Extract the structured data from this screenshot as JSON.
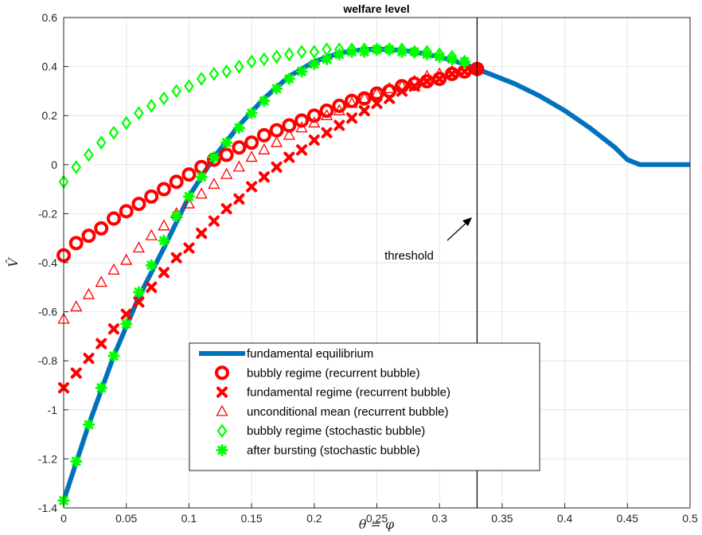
{
  "chart_data": {
    "type": "line",
    "title": "welfare level",
    "xlabel": "θ = φ",
    "ylabel": "V̂",
    "xlim": [
      0,
      0.5
    ],
    "ylim": [
      -1.4,
      0.6
    ],
    "x_ticks": [
      "0",
      "0.05",
      "0.1",
      "0.15",
      "0.2",
      "0.25",
      "0.3",
      "0.35",
      "0.4",
      "0.45",
      "0.5"
    ],
    "y_ticks": [
      "-1.4",
      "-1.2",
      "-1",
      "-0.8",
      "-0.6",
      "-0.4",
      "-0.2",
      "0",
      "0.2",
      "0.4",
      "0.6"
    ],
    "grid": true,
    "legend_position": "bottom-center",
    "threshold": {
      "x": 0.33,
      "label": "threshold"
    },
    "series": [
      {
        "name": "fundamental equilibrium",
        "style": "line",
        "color": "#0072BD",
        "x": [
          0,
          0.02,
          0.04,
          0.06,
          0.08,
          0.1,
          0.12,
          0.14,
          0.16,
          0.18,
          0.2,
          0.22,
          0.24,
          0.26,
          0.28,
          0.3,
          0.32,
          0.33,
          0.34,
          0.36,
          0.38,
          0.4,
          0.42,
          0.44,
          0.45,
          0.46,
          0.47,
          0.5
        ],
        "y": [
          -1.37,
          -1.06,
          -0.78,
          -0.54,
          -0.34,
          -0.13,
          0.03,
          0.16,
          0.27,
          0.36,
          0.42,
          0.455,
          0.47,
          0.47,
          0.46,
          0.44,
          0.41,
          0.39,
          0.37,
          0.33,
          0.28,
          0.22,
          0.15,
          0.07,
          0.02,
          0.0,
          0.0,
          0.0
        ]
      },
      {
        "name": "bubbly regime (recurrent bubble)",
        "marker": "circle",
        "color": "#FF0000",
        "x": [
          0,
          0.01,
          0.02,
          0.03,
          0.04,
          0.05,
          0.06,
          0.07,
          0.08,
          0.09,
          0.1,
          0.11,
          0.12,
          0.13,
          0.14,
          0.15,
          0.16,
          0.17,
          0.18,
          0.19,
          0.2,
          0.21,
          0.22,
          0.23,
          0.24,
          0.25,
          0.26,
          0.27,
          0.28,
          0.29,
          0.3,
          0.31,
          0.32,
          0.33
        ],
        "y": [
          -0.37,
          -0.32,
          -0.29,
          -0.26,
          -0.22,
          -0.19,
          -0.16,
          -0.13,
          -0.1,
          -0.07,
          -0.04,
          -0.01,
          0.02,
          0.04,
          0.07,
          0.09,
          0.12,
          0.14,
          0.16,
          0.18,
          0.2,
          0.22,
          0.24,
          0.26,
          0.27,
          0.29,
          0.3,
          0.32,
          0.33,
          0.34,
          0.35,
          0.37,
          0.38,
          0.39
        ]
      },
      {
        "name": "fundamental regime (recurrent bubble)",
        "marker": "x",
        "color": "#FF0000",
        "x": [
          0,
          0.01,
          0.02,
          0.03,
          0.04,
          0.05,
          0.06,
          0.07,
          0.08,
          0.09,
          0.1,
          0.11,
          0.12,
          0.13,
          0.14,
          0.15,
          0.16,
          0.17,
          0.18,
          0.19,
          0.2,
          0.21,
          0.22,
          0.23,
          0.24,
          0.25,
          0.26,
          0.27,
          0.28,
          0.29,
          0.3,
          0.31,
          0.32,
          0.33
        ],
        "y": [
          -0.91,
          -0.85,
          -0.79,
          -0.73,
          -0.67,
          -0.61,
          -0.56,
          -0.5,
          -0.44,
          -0.38,
          -0.34,
          -0.28,
          -0.23,
          -0.18,
          -0.14,
          -0.09,
          -0.05,
          -0.01,
          0.03,
          0.06,
          0.1,
          0.13,
          0.16,
          0.19,
          0.22,
          0.25,
          0.27,
          0.3,
          0.32,
          0.34,
          0.35,
          0.37,
          0.38,
          0.39
        ]
      },
      {
        "name": "unconditional mean (recurrent bubble)",
        "marker": "triangle",
        "color": "#FF0000",
        "x": [
          0,
          0.01,
          0.02,
          0.03,
          0.04,
          0.05,
          0.06,
          0.07,
          0.08,
          0.09,
          0.1,
          0.11,
          0.12,
          0.13,
          0.14,
          0.15,
          0.16,
          0.17,
          0.18,
          0.19,
          0.2,
          0.21,
          0.22,
          0.23,
          0.24,
          0.25,
          0.26,
          0.27,
          0.28,
          0.29,
          0.3,
          0.31,
          0.32,
          0.33
        ],
        "y": [
          -0.63,
          -0.58,
          -0.53,
          -0.48,
          -0.43,
          -0.39,
          -0.34,
          -0.29,
          -0.25,
          -0.2,
          -0.16,
          -0.12,
          -0.08,
          -0.04,
          -0.01,
          0.03,
          0.06,
          0.09,
          0.12,
          0.15,
          0.17,
          0.2,
          0.22,
          0.25,
          0.27,
          0.29,
          0.31,
          0.32,
          0.34,
          0.36,
          0.37,
          0.38,
          0.39,
          0.39
        ]
      },
      {
        "name": "bubbly regime (stochastic bubble)",
        "marker": "diamond",
        "color": "#00FF00",
        "x": [
          0,
          0.01,
          0.02,
          0.03,
          0.04,
          0.05,
          0.06,
          0.07,
          0.08,
          0.09,
          0.1,
          0.11,
          0.12,
          0.13,
          0.14,
          0.15,
          0.16,
          0.17,
          0.18,
          0.19,
          0.2,
          0.21,
          0.22,
          0.23,
          0.24,
          0.25,
          0.26,
          0.27,
          0.28,
          0.29,
          0.3,
          0.31,
          0.32
        ],
        "y": [
          -0.07,
          -0.01,
          0.04,
          0.09,
          0.13,
          0.17,
          0.21,
          0.24,
          0.27,
          0.3,
          0.32,
          0.35,
          0.37,
          0.38,
          0.4,
          0.42,
          0.43,
          0.44,
          0.45,
          0.46,
          0.46,
          0.47,
          0.47,
          0.47,
          0.47,
          0.47,
          0.47,
          0.47,
          0.46,
          0.46,
          0.45,
          0.44,
          0.42
        ]
      },
      {
        "name": "after bursting (stochastic bubble)",
        "marker": "asterisk",
        "color": "#00FF00",
        "x": [
          0,
          0.01,
          0.02,
          0.03,
          0.04,
          0.05,
          0.06,
          0.07,
          0.08,
          0.09,
          0.1,
          0.11,
          0.12,
          0.13,
          0.14,
          0.15,
          0.16,
          0.17,
          0.18,
          0.19,
          0.2,
          0.21,
          0.22,
          0.23,
          0.24,
          0.25,
          0.26,
          0.27,
          0.28,
          0.29,
          0.3,
          0.31,
          0.32
        ],
        "y": [
          -1.37,
          -1.21,
          -1.06,
          -0.91,
          -0.78,
          -0.65,
          -0.52,
          -0.41,
          -0.31,
          -0.21,
          -0.13,
          -0.05,
          0.03,
          0.09,
          0.15,
          0.21,
          0.26,
          0.31,
          0.35,
          0.38,
          0.41,
          0.43,
          0.45,
          0.46,
          0.46,
          0.47,
          0.47,
          0.46,
          0.46,
          0.45,
          0.44,
          0.43,
          0.42
        ]
      }
    ]
  }
}
